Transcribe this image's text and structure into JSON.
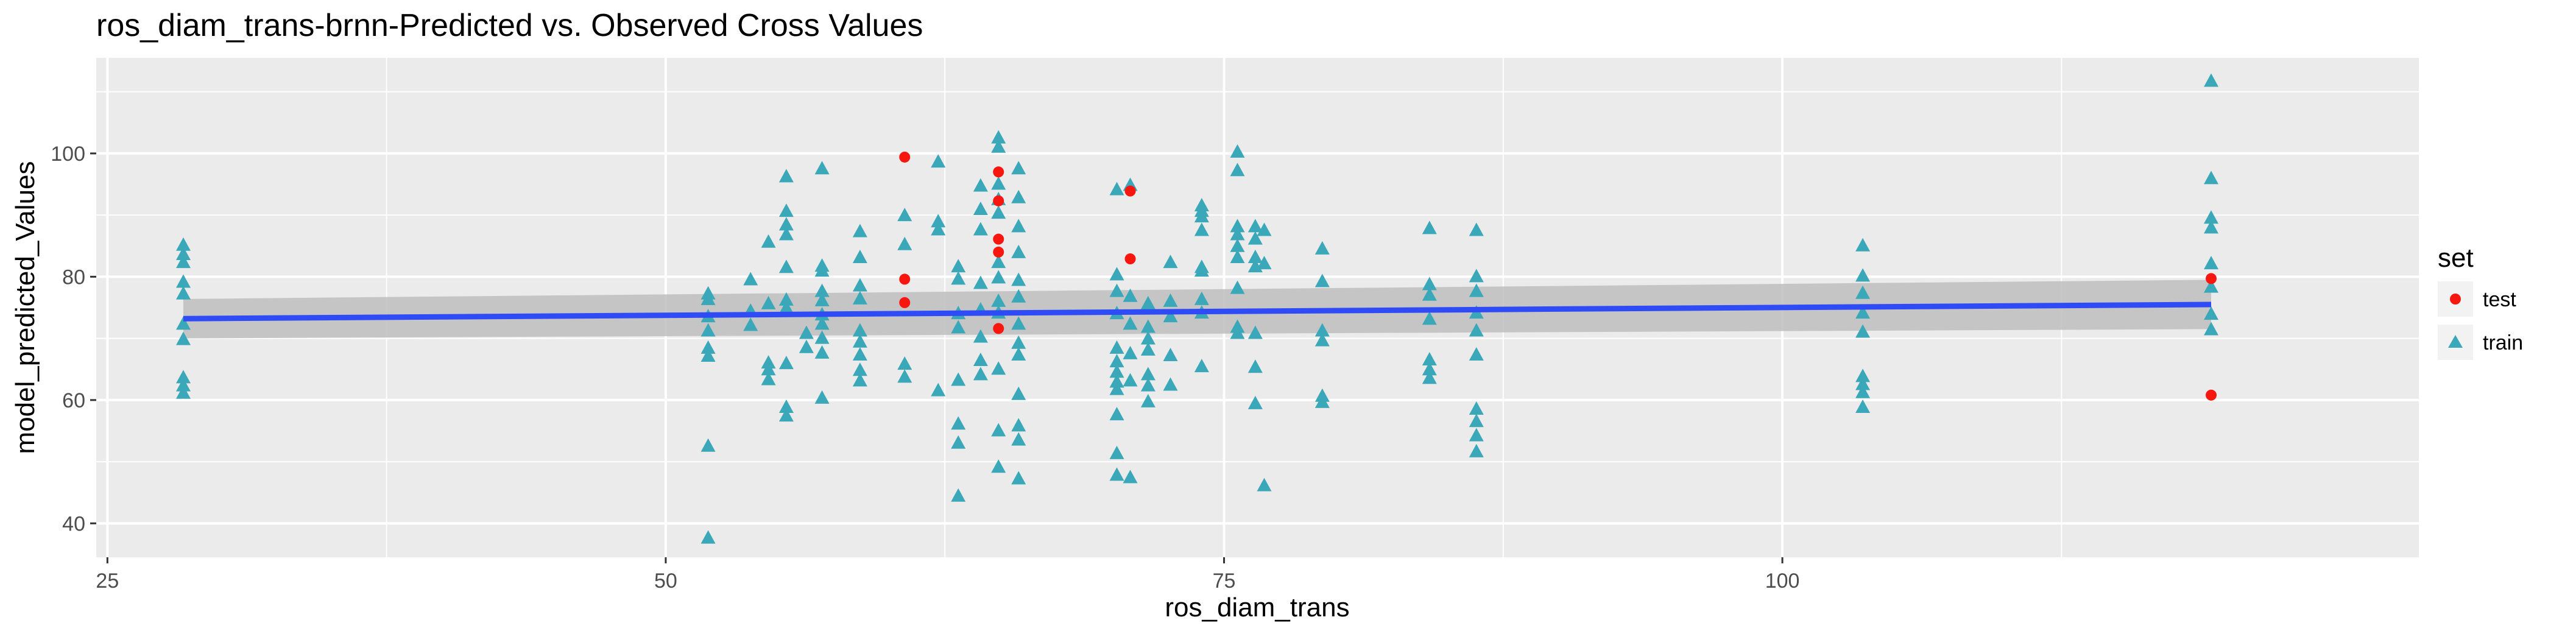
{
  "chart_data": {
    "type": "scatter",
    "title": "ros_diam_trans-brnn-Predicted vs. Observed Cross Values",
    "xlabel": "ros_diam_trans",
    "ylabel": "model_predicted_Values",
    "xlim": [
      24.5,
      128.5
    ],
    "ylim": [
      34.5,
      115.5
    ],
    "x_ticks": [
      25,
      50,
      75,
      100
    ],
    "x_tick_labels": [
      "25",
      "50",
      "75",
      "100"
    ],
    "y_ticks": [
      40,
      60,
      80,
      100
    ],
    "y_tick_labels": [
      "40",
      "60",
      "80",
      "100"
    ],
    "grid": true,
    "legend": {
      "title": "set",
      "position": "right",
      "entries": [
        "test",
        "train"
      ]
    },
    "colors": {
      "test": "#F8170F",
      "train": "#3AA8B8",
      "trend": "#2F4BF5",
      "ribbon": "#BEBEBE",
      "panel": "#EBEBEB"
    },
    "series": [
      {
        "name": "test",
        "marker": "circle",
        "points": [
          [
            60.7,
            99.4
          ],
          [
            60.7,
            79.6
          ],
          [
            60.7,
            75.8
          ],
          [
            64.9,
            97.0
          ],
          [
            64.9,
            92.3
          ],
          [
            64.9,
            86.1
          ],
          [
            64.9,
            84.0
          ],
          [
            64.9,
            71.6
          ],
          [
            70.8,
            93.9
          ],
          [
            70.8,
            82.9
          ],
          [
            119.2,
            79.7
          ],
          [
            119.2,
            60.8
          ]
        ]
      },
      {
        "name": "train",
        "marker": "triangle",
        "points": [
          [
            28.4,
            85.1
          ],
          [
            28.4,
            83.6
          ],
          [
            28.4,
            82.3
          ],
          [
            28.4,
            79.1
          ],
          [
            28.4,
            77.2
          ],
          [
            28.4,
            72.3
          ],
          [
            28.4,
            69.8
          ],
          [
            28.4,
            63.6
          ],
          [
            28.4,
            62.3
          ],
          [
            28.4,
            61.1
          ],
          [
            51.9,
            77.2
          ],
          [
            51.9,
            76.3
          ],
          [
            51.9,
            73.5
          ],
          [
            51.9,
            71.2
          ],
          [
            51.9,
            68.4
          ],
          [
            51.9,
            67.1
          ],
          [
            51.9,
            52.5
          ],
          [
            51.9,
            37.6
          ],
          [
            53.8,
            79.5
          ],
          [
            53.8,
            74.4
          ],
          [
            53.8,
            72.1
          ],
          [
            54.6,
            85.6
          ],
          [
            54.6,
            75.6
          ],
          [
            54.6,
            66.0
          ],
          [
            54.6,
            64.9
          ],
          [
            54.6,
            63.3
          ],
          [
            55.4,
            96.2
          ],
          [
            55.4,
            90.6
          ],
          [
            55.4,
            88.4
          ],
          [
            55.4,
            86.8
          ],
          [
            55.4,
            81.5
          ],
          [
            55.4,
            76.2
          ],
          [
            55.4,
            74.9
          ],
          [
            55.4,
            65.9
          ],
          [
            55.4,
            58.8
          ],
          [
            55.4,
            57.4
          ],
          [
            56.3,
            70.8
          ],
          [
            56.3,
            68.5
          ],
          [
            57.0,
            97.5
          ],
          [
            57.0,
            81.7
          ],
          [
            57.0,
            80.9
          ],
          [
            57.0,
            77.6
          ],
          [
            57.0,
            76.1
          ],
          [
            57.0,
            73.8
          ],
          [
            57.0,
            72.3
          ],
          [
            57.0,
            70.0
          ],
          [
            57.0,
            67.6
          ],
          [
            57.0,
            60.3
          ],
          [
            58.7,
            87.3
          ],
          [
            58.7,
            83.1
          ],
          [
            58.7,
            78.5
          ],
          [
            58.7,
            76.4
          ],
          [
            58.7,
            71.2
          ],
          [
            58.7,
            69.4
          ],
          [
            58.7,
            67.3
          ],
          [
            58.7,
            64.8
          ],
          [
            58.7,
            63.1
          ],
          [
            60.7,
            89.9
          ],
          [
            60.7,
            85.2
          ],
          [
            60.7,
            65.8
          ],
          [
            60.7,
            63.7
          ],
          [
            62.2,
            98.6
          ],
          [
            62.2,
            88.9
          ],
          [
            62.2,
            87.6
          ],
          [
            62.2,
            61.5
          ],
          [
            63.1,
            81.6
          ],
          [
            63.1,
            79.6
          ],
          [
            63.1,
            74.0
          ],
          [
            63.1,
            71.7
          ],
          [
            63.1,
            63.2
          ],
          [
            63.1,
            56.1
          ],
          [
            63.1,
            53.0
          ],
          [
            63.1,
            44.4
          ],
          [
            64.1,
            94.7
          ],
          [
            64.1,
            90.9
          ],
          [
            64.1,
            87.6
          ],
          [
            64.1,
            78.9
          ],
          [
            64.1,
            74.6
          ],
          [
            64.1,
            70.2
          ],
          [
            64.1,
            66.4
          ],
          [
            64.1,
            64.1
          ],
          [
            64.9,
            102.5
          ],
          [
            64.9,
            101.0
          ],
          [
            64.9,
            95.0
          ],
          [
            64.9,
            92.5
          ],
          [
            64.9,
            90.3
          ],
          [
            64.9,
            82.3
          ],
          [
            64.9,
            79.8
          ],
          [
            64.9,
            76.0
          ],
          [
            64.9,
            74.1
          ],
          [
            64.9,
            65.0
          ],
          [
            64.9,
            55.0
          ],
          [
            64.9,
            49.1
          ],
          [
            65.8,
            97.5
          ],
          [
            65.8,
            92.8
          ],
          [
            65.8,
            88.1
          ],
          [
            65.8,
            83.9
          ],
          [
            65.8,
            79.4
          ],
          [
            65.8,
            76.7
          ],
          [
            65.8,
            72.3
          ],
          [
            65.8,
            69.2
          ],
          [
            65.8,
            67.3
          ],
          [
            65.8,
            60.9
          ],
          [
            65.8,
            55.8
          ],
          [
            65.8,
            53.5
          ],
          [
            65.8,
            47.2
          ],
          [
            70.2,
            94.1
          ],
          [
            70.2,
            80.3
          ],
          [
            70.2,
            77.6
          ],
          [
            70.2,
            74.0
          ],
          [
            70.2,
            68.4
          ],
          [
            70.2,
            66.2
          ],
          [
            70.2,
            64.5
          ],
          [
            70.2,
            62.9
          ],
          [
            70.2,
            61.7
          ],
          [
            70.2,
            57.6
          ],
          [
            70.2,
            51.3
          ],
          [
            70.2,
            47.8
          ],
          [
            70.8,
            94.8
          ],
          [
            70.8,
            76.8
          ],
          [
            70.8,
            72.3
          ],
          [
            70.8,
            67.5
          ],
          [
            70.8,
            63.1
          ],
          [
            70.8,
            47.4
          ],
          [
            71.6,
            75.6
          ],
          [
            71.6,
            71.8
          ],
          [
            71.6,
            69.9
          ],
          [
            71.6,
            68.1
          ],
          [
            71.6,
            64.1
          ],
          [
            71.6,
            62.3
          ],
          [
            71.6,
            59.7
          ],
          [
            72.6,
            82.3
          ],
          [
            72.6,
            76.0
          ],
          [
            72.6,
            73.5
          ],
          [
            72.6,
            67.2
          ],
          [
            72.6,
            62.4
          ],
          [
            74.0,
            91.5
          ],
          [
            74.0,
            90.6
          ],
          [
            74.0,
            89.7
          ],
          [
            74.0,
            87.5
          ],
          [
            74.0,
            81.5
          ],
          [
            74.0,
            80.9
          ],
          [
            74.0,
            76.3
          ],
          [
            74.0,
            74.1
          ],
          [
            74.0,
            65.4
          ],
          [
            75.6,
            100.2
          ],
          [
            75.6,
            97.2
          ],
          [
            75.6,
            88.1
          ],
          [
            75.6,
            86.8
          ],
          [
            75.6,
            84.9
          ],
          [
            75.6,
            83.1
          ],
          [
            75.6,
            78.1
          ],
          [
            75.6,
            71.8
          ],
          [
            75.6,
            70.8
          ],
          [
            76.4,
            88.1
          ],
          [
            76.4,
            86.1
          ],
          [
            76.4,
            83.1
          ],
          [
            76.4,
            81.6
          ],
          [
            76.4,
            70.8
          ],
          [
            76.4,
            65.3
          ],
          [
            76.4,
            59.4
          ],
          [
            76.8,
            87.5
          ],
          [
            76.8,
            82.1
          ],
          [
            76.8,
            46.1
          ],
          [
            79.4,
            84.5
          ],
          [
            79.4,
            79.2
          ],
          [
            79.4,
            71.2
          ],
          [
            79.4,
            69.6
          ],
          [
            79.4,
            60.6
          ],
          [
            79.4,
            59.6
          ],
          [
            84.2,
            87.8
          ],
          [
            84.2,
            78.7
          ],
          [
            84.2,
            77.0
          ],
          [
            84.2,
            73.1
          ],
          [
            84.2,
            66.5
          ],
          [
            84.2,
            64.9
          ],
          [
            84.2,
            63.5
          ],
          [
            86.3,
            87.5
          ],
          [
            86.3,
            80.0
          ],
          [
            86.3,
            77.6
          ],
          [
            86.3,
            74.1
          ],
          [
            86.3,
            71.2
          ],
          [
            86.3,
            67.3
          ],
          [
            86.3,
            58.5
          ],
          [
            86.3,
            56.5
          ],
          [
            86.3,
            54.2
          ],
          [
            86.3,
            51.6
          ],
          [
            103.6,
            85.0
          ],
          [
            103.6,
            80.1
          ],
          [
            103.6,
            77.3
          ],
          [
            103.6,
            74.1
          ],
          [
            103.6,
            71.0
          ],
          [
            103.6,
            63.8
          ],
          [
            103.6,
            62.5
          ],
          [
            103.6,
            61.2
          ],
          [
            103.6,
            58.8
          ],
          [
            119.2,
            111.7
          ],
          [
            119.2,
            95.9
          ],
          [
            119.2,
            89.5
          ],
          [
            119.2,
            87.9
          ],
          [
            119.2,
            82.1
          ],
          [
            119.2,
            78.3
          ],
          [
            119.2,
            73.9
          ],
          [
            119.2,
            71.4
          ]
        ]
      }
    ],
    "trend": {
      "name": "smooth",
      "x": [
        28.4,
        119.2
      ],
      "y": [
        73.2,
        75.5
      ],
      "ribbon_lower": [
        70.0,
        71.5
      ],
      "ribbon_upper": [
        76.4,
        79.5
      ]
    }
  }
}
